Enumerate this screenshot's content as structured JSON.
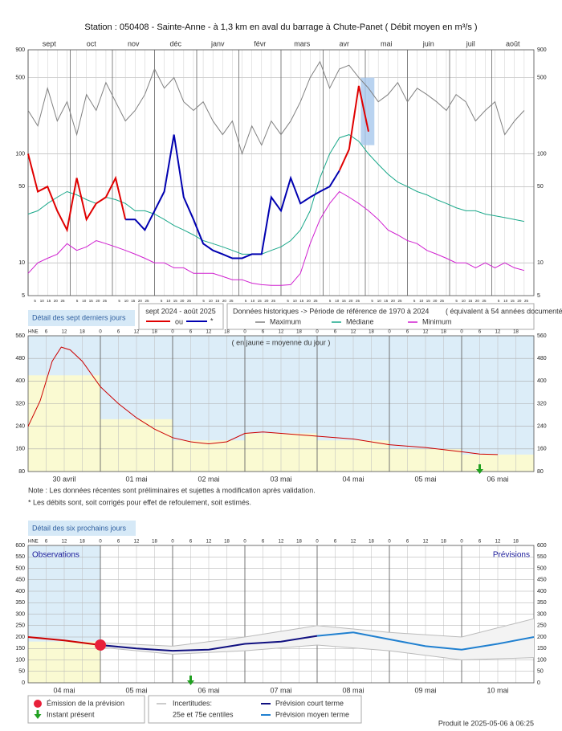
{
  "header": {
    "title": "Station : 050408     -   Sainte-Anne - à 1,3 km en aval du barrage à Chute-Panet   ( Débit moyen en m³/s )"
  },
  "chart_data": [
    {
      "type": "line",
      "log_scale": true,
      "month_labels": [
        "sept",
        "oct",
        "nov",
        "déc",
        "janv",
        "févr",
        "mars",
        "avr",
        "mai",
        "juin",
        "juil",
        "août"
      ],
      "day_ticks": [
        5,
        10,
        15,
        20,
        25
      ],
      "xlim": [
        0,
        52
      ],
      "ylim": [
        5,
        900
      ],
      "yticks": [
        5,
        10,
        50,
        100,
        500,
        900
      ],
      "x": [
        0,
        1,
        2,
        3,
        4,
        5,
        6,
        7,
        8,
        9,
        10,
        11,
        12,
        13,
        14,
        15,
        16,
        17,
        18,
        19,
        20,
        21,
        22,
        23,
        24,
        25,
        26,
        27,
        28,
        29,
        30,
        31,
        32,
        33,
        34,
        35,
        36,
        37,
        38,
        39,
        40,
        41,
        42,
        43,
        44,
        45,
        46,
        47,
        48,
        49,
        50,
        51
      ],
      "series": [
        {
          "name": "Maximum",
          "color": "#808080",
          "values": [
            250,
            180,
            400,
            200,
            300,
            150,
            350,
            250,
            450,
            300,
            200,
            250,
            350,
            600,
            400,
            500,
            300,
            250,
            300,
            200,
            150,
            200,
            100,
            180,
            120,
            200,
            150,
            200,
            300,
            500,
            700,
            400,
            600,
            650,
            500,
            400,
            300,
            350,
            450,
            300,
            400,
            350,
            300,
            250,
            350,
            300,
            200,
            250,
            300,
            150,
            200,
            250
          ]
        },
        {
          "name": "Médiane",
          "color": "#1aa88a",
          "values": [
            28,
            30,
            35,
            40,
            45,
            42,
            38,
            35,
            40,
            38,
            35,
            30,
            30,
            28,
            25,
            22,
            20,
            18,
            16,
            15,
            14,
            13,
            12,
            12,
            12,
            13,
            14,
            16,
            20,
            30,
            60,
            100,
            140,
            150,
            130,
            100,
            80,
            65,
            55,
            50,
            45,
            42,
            38,
            35,
            32,
            30,
            30,
            28,
            27,
            26,
            25,
            24
          ]
        },
        {
          "name": "Minimum",
          "color": "#d020d0",
          "values": [
            8,
            10,
            11,
            12,
            15,
            13,
            14,
            16,
            15,
            14,
            13,
            12,
            11,
            10,
            10,
            9,
            9,
            8,
            8,
            8,
            7.5,
            7,
            7,
            6.5,
            6.3,
            6.2,
            6.2,
            6.3,
            8,
            15,
            25,
            35,
            45,
            40,
            35,
            30,
            25,
            20,
            18,
            16,
            15,
            13,
            12,
            11,
            10,
            10,
            9,
            10,
            9,
            10,
            9,
            8.5
          ]
        },
        {
          "name": "sept 2024 - août 2025",
          "color": "#e00000",
          "values": [
            100,
            45,
            50,
            30,
            20,
            60,
            25,
            35,
            40,
            60,
            25,
            null,
            null,
            null,
            null,
            null,
            null,
            null,
            null,
            null,
            null,
            null,
            null,
            null,
            null,
            null,
            null,
            null,
            null,
            null,
            null,
            null,
            70,
            110,
            420,
            160,
            null,
            null,
            null,
            null,
            null,
            null,
            null,
            null,
            null,
            null,
            null,
            null,
            null,
            null,
            null,
            null
          ]
        },
        {
          "name": "*",
          "color": "#0000b0",
          "values": [
            null,
            null,
            null,
            null,
            null,
            null,
            null,
            null,
            null,
            null,
            25,
            25,
            20,
            30,
            45,
            150,
            40,
            25,
            15,
            13,
            12,
            11,
            11,
            12,
            12,
            40,
            30,
            60,
            35,
            40,
            45,
            50,
            70,
            null,
            null,
            null,
            null,
            null,
            null,
            null,
            null,
            null,
            null,
            null,
            null,
            null,
            null,
            null,
            null,
            null,
            null,
            null
          ]
        }
      ],
      "legend": {
        "button": "Détail des sept derniers jours",
        "or": "ou",
        "history": "Données historiques -> Période de référence  de 1970 à 2024",
        "history_note": "( équivalent à 54 années documentées )"
      }
    },
    {
      "type": "line",
      "hour_label": "HNE",
      "hour_ticks": [
        6,
        12,
        18,
        {
          "value": 24,
          "label": "0"
        },
        {
          "value": 30,
          "label": "6"
        },
        {
          "value": 36,
          "label": "12"
        },
        {
          "value": 42,
          "label": "18"
        },
        {
          "value": 48,
          "label": "0"
        },
        {
          "value": 54,
          "label": "6"
        },
        {
          "value": 60,
          "label": "12"
        },
        {
          "value": 66,
          "label": "18"
        },
        {
          "value": 72,
          "label": "0"
        },
        {
          "value": 78,
          "label": "6"
        },
        {
          "value": 84,
          "label": "12"
        },
        {
          "value": 90,
          "label": "18"
        },
        {
          "value": 96,
          "label": "0"
        },
        {
          "value": 102,
          "label": "6"
        },
        {
          "value": 108,
          "label": "12"
        },
        {
          "value": 114,
          "label": "18"
        },
        {
          "value": 120,
          "label": "0"
        },
        {
          "value": 126,
          "label": "6"
        },
        {
          "value": 132,
          "label": "12"
        },
        {
          "value": 138,
          "label": "18"
        },
        {
          "value": 144,
          "label": "0"
        },
        {
          "value": 150,
          "label": "6"
        },
        {
          "value": 156,
          "label": "12"
        },
        {
          "value": 162,
          "label": "18"
        }
      ],
      "day_labels": [
        "30 avril",
        "01 mai",
        "02 mai",
        "03 mai",
        "04 mai",
        "05 mai",
        "06 mai"
      ],
      "daily_means": [
        420,
        265,
        190,
        215,
        190,
        160,
        140
      ],
      "annotation": "( en jaune = moyenne du jour )",
      "xlim": [
        0,
        168
      ],
      "ylim": [
        80,
        560
      ],
      "yticks": [
        80,
        160,
        240,
        320,
        400,
        480,
        560
      ],
      "color": "#cc0000",
      "x": [
        0,
        4,
        8,
        11,
        14,
        18,
        24,
        30,
        36,
        42,
        48,
        54,
        60,
        66,
        72,
        78,
        84,
        96,
        108,
        120,
        132,
        144,
        150,
        156
      ],
      "values": [
        240,
        330,
        470,
        520,
        510,
        470,
        380,
        320,
        270,
        230,
        200,
        185,
        178,
        185,
        215,
        220,
        215,
        205,
        195,
        175,
        165,
        150,
        142,
        140
      ],
      "present": 150
    },
    {
      "type": "line",
      "hour_label": "HNE",
      "hour_ticks": [
        6,
        12,
        18,
        {
          "value": 24,
          "label": "0"
        },
        {
          "value": 30,
          "label": "6"
        },
        {
          "value": 36,
          "label": "12"
        },
        {
          "value": 42,
          "label": "18"
        },
        {
          "value": 48,
          "label": "0"
        },
        {
          "value": 54,
          "label": "6"
        },
        {
          "value": 60,
          "label": "12"
        },
        {
          "value": 66,
          "label": "18"
        },
        {
          "value": 72,
          "label": "0"
        },
        {
          "value": 78,
          "label": "6"
        },
        {
          "value": 84,
          "label": "12"
        },
        {
          "value": 90,
          "label": "18"
        },
        {
          "value": 96,
          "label": "0"
        },
        {
          "value": 102,
          "label": "6"
        },
        {
          "value": 108,
          "label": "12"
        },
        {
          "value": 114,
          "label": "18"
        },
        {
          "value": 120,
          "label": "0"
        },
        {
          "value": 126,
          "label": "6"
        },
        {
          "value": 132,
          "label": "12"
        },
        {
          "value": 138,
          "label": "18"
        },
        {
          "value": 144,
          "label": "0"
        },
        {
          "value": 150,
          "label": "6"
        },
        {
          "value": 156,
          "label": "12"
        },
        {
          "value": 162,
          "label": "18"
        }
      ],
      "day_labels": [
        "04 mai",
        "05 mai",
        "06 mai",
        "07 mai",
        "08 mai",
        "09 mai",
        "10 mai"
      ],
      "daily_means": [
        180,
        null,
        null,
        null,
        null,
        null,
        null
      ],
      "xlim": [
        0,
        168
      ],
      "ylim": [
        0,
        600
      ],
      "yticks": [
        0,
        50,
        100,
        150,
        200,
        250,
        300,
        350,
        400,
        450,
        500,
        550,
        600
      ],
      "band": {
        "color": "#bbbbbb",
        "x": [
          24,
          48,
          72,
          96,
          120,
          144,
          168
        ],
        "upper": [
          175,
          160,
          200,
          250,
          220,
          200,
          280
        ],
        "lower": [
          155,
          125,
          140,
          165,
          140,
          100,
          110
        ]
      },
      "series": [
        {
          "name": "Observations",
          "color": "#cc0000",
          "x": [
            0,
            12,
            24
          ],
          "values": [
            200,
            185,
            165
          ]
        },
        {
          "name": "Prévision court terme",
          "color": "#101080",
          "x": [
            24,
            36,
            48,
            60,
            72,
            84,
            96
          ],
          "values": [
            165,
            150,
            140,
            145,
            170,
            180,
            205
          ]
        },
        {
          "name": "Prévision moyen terme",
          "color": "#2080d0",
          "x": [
            96,
            108,
            120,
            132,
            144,
            156,
            168
          ],
          "values": [
            205,
            220,
            190,
            160,
            145,
            170,
            200
          ]
        }
      ],
      "forecast_label": "Prévisions",
      "emission": {
        "label": "Émission de la prévision",
        "x": 24,
        "value": 165
      },
      "present": 54,
      "legend": {
        "present": "Instant présent",
        "band": "Incertitudes:",
        "band_note": "25e et 75e centiles",
        "button": "Détail des six prochains jours"
      }
    }
  ],
  "notes": [
    "Note : Les données récentes sont préliminaires et sujettes à modification après validation.",
    "* Les débits sont, soit corrigés pour effet de refoulement, soit estimés."
  ],
  "footer": "Produit le 2025-05-06 à 06:25"
}
